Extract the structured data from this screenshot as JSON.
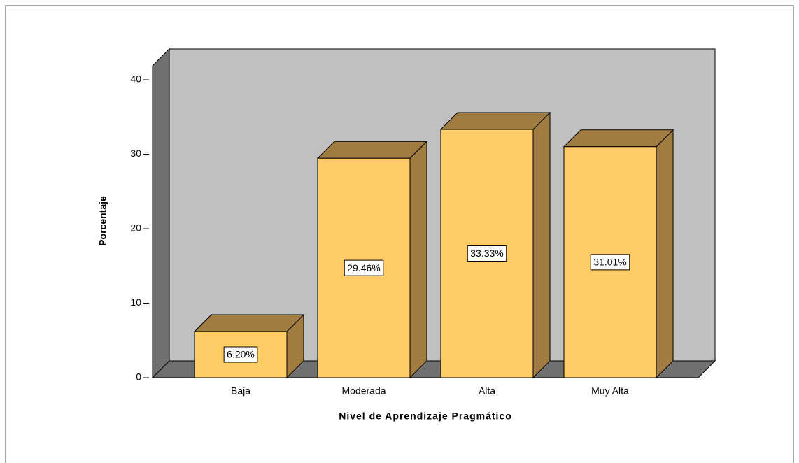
{
  "chart_data": {
    "type": "bar3d",
    "x_label": "Nivel de Aprendizaje Pragmático",
    "y_label": "Porcentaje",
    "categories": [
      "Baja",
      "Moderada",
      "Alta",
      "Muy Alta"
    ],
    "values": [
      6.2,
      29.46,
      33.33,
      31.01
    ],
    "value_labels": [
      "6.20%",
      "29.46%",
      "33.33%",
      "31.01%"
    ],
    "color": "#ffcc66",
    "ylim": [
      0,
      40
    ],
    "yticks": [
      0,
      10,
      20,
      30,
      40
    ]
  }
}
